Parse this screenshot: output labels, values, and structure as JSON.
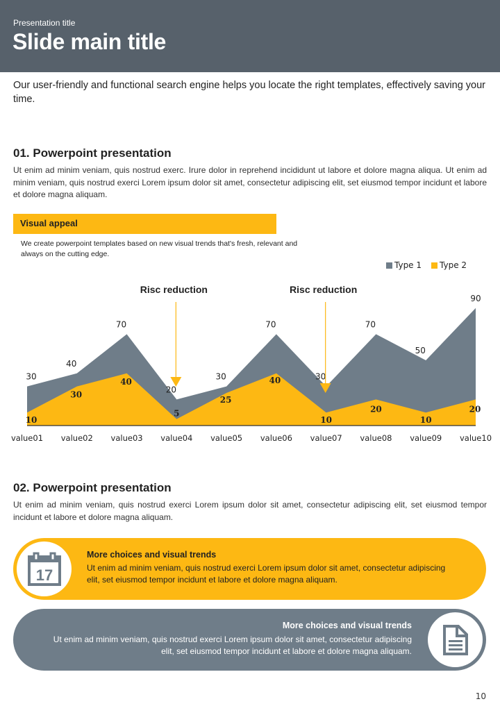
{
  "header": {
    "presentation_title": "Presentation title",
    "main_title": "Slide main title"
  },
  "intro": "Our user-friendly and functional search engine helps you locate the right templates, effectively saving your time.",
  "section1": {
    "title": "01. Powerpoint presentation",
    "body": "Ut enim ad minim veniam, quis nostrud exerc. Irure dolor in reprehend incididunt ut labore et dolore magna aliqua. Ut enim ad minim veniam, quis nostrud exerci  Lorem ipsum dolor sit amet, consectetur adipiscing elit, set eiusmod tempor incidunt et labore et dolore magna aliquam."
  },
  "visual_appeal": {
    "label": "Visual appeal",
    "description": "We create powerpoint templates based on new visual trends that's fresh, relevant and always on the cutting edge."
  },
  "colors": {
    "header_bg": "#57616b",
    "accent_yellow": "#fdb813",
    "gray": "#6f7d89"
  },
  "chart_data": {
    "type": "area",
    "categories": [
      "value01",
      "value02",
      "value03",
      "value04",
      "value05",
      "value06",
      "value07",
      "value08",
      "value09",
      "value10"
    ],
    "series": [
      {
        "name": "Type 1",
        "color": "#6f7d89",
        "values": [
          30,
          40,
          70,
          20,
          30,
          70,
          30,
          70,
          50,
          90
        ]
      },
      {
        "name": "Type 2",
        "color": "#fdb813",
        "values": [
          10,
          30,
          40,
          5,
          25,
          40,
          10,
          20,
          10,
          20
        ]
      }
    ],
    "ylim": [
      0,
      90
    ],
    "legend": "top-right",
    "grid": false,
    "annotations": [
      {
        "text": "Risc reduction",
        "category": "value04"
      },
      {
        "text": "Risc reduction",
        "category": "value07"
      }
    ],
    "title": "",
    "xlabel": "",
    "ylabel": ""
  },
  "section2": {
    "title": "02. Powerpoint presentation",
    "body": "Ut enim ad minim veniam, quis nostrud exerci  Lorem ipsum dolor sit amet, consectetur adipiscing elit, set eiusmod tempor incidunt et labore et dolore magna aliquam."
  },
  "cards": [
    {
      "icon": "calendar-icon",
      "icon_text": "17",
      "title": "More choices and visual trends",
      "text": "Ut enim ad minim veniam, quis nostrud exerci  Lorem ipsum dolor sit amet, consectetur adipiscing elit, set eiusmod tempor incidunt et labore et dolore magna aliquam."
    },
    {
      "icon": "document-icon",
      "title": "More choices and visual trends",
      "text": "Ut enim ad minim veniam, quis nostrud exerci  Lorem ipsum dolor sit amet, consectetur adipiscing elit, set eiusmod tempor incidunt et labore et dolore magna aliquam."
    }
  ],
  "page_number": "10"
}
